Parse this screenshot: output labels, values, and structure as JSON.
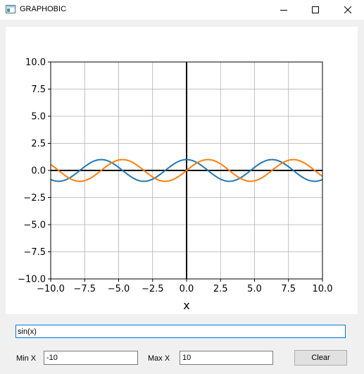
{
  "window": {
    "title": "GRAPHOBIC",
    "controls": [
      "minimize",
      "maximize",
      "close"
    ],
    "app_icon": "window-app-icon"
  },
  "function_input": {
    "value": "sin(x)"
  },
  "range": {
    "min_label": "Min X",
    "min_value": "-10",
    "max_label": "Max X",
    "max_value": "10"
  },
  "clear_label": "Clear",
  "chart_data": {
    "type": "line",
    "xlabel": "x",
    "ylabel": "",
    "xlim": [
      -10,
      10
    ],
    "ylim": [
      -10,
      10
    ],
    "xticks": [
      "−10.0",
      "−7.5",
      "−5.0",
      "−2.5",
      "0.0",
      "2.5",
      "5.0",
      "7.5",
      "10.0"
    ],
    "yticks": [
      "10.0",
      "7.5",
      "5.0",
      "2.5",
      "0.0",
      "−2.5",
      "−5.0",
      "−7.5",
      "−10.0"
    ],
    "grid": true,
    "axes_lines_at_zero": true,
    "series": [
      {
        "color": "#1f77b4",
        "x": [
          -10,
          -9,
          -8,
          -7,
          -6,
          -5,
          -4,
          -3,
          -2,
          -1,
          0,
          1,
          2,
          3,
          4,
          5,
          6,
          7,
          8,
          9,
          10
        ],
        "y": [
          -0.84,
          -0.91,
          -0.15,
          0.75,
          0.96,
          0.28,
          -0.65,
          -0.99,
          -0.42,
          0.54,
          1.0,
          0.54,
          -0.42,
          -0.99,
          -0.65,
          0.28,
          0.96,
          0.75,
          -0.15,
          -0.91,
          -0.84
        ]
      },
      {
        "color": "#ff7f0e",
        "x": [
          -10,
          -9,
          -8,
          -7,
          -6,
          -5,
          -4,
          -3,
          -2,
          -1,
          0,
          1,
          2,
          3,
          4,
          5,
          6,
          7,
          8,
          9,
          10
        ],
        "y": [
          0.54,
          -0.41,
          -0.99,
          -0.66,
          0.28,
          0.96,
          0.76,
          -0.14,
          -0.91,
          -0.84,
          0.0,
          0.84,
          0.91,
          0.14,
          -0.76,
          -0.96,
          -0.28,
          0.66,
          0.99,
          0.41,
          -0.54
        ]
      }
    ]
  }
}
